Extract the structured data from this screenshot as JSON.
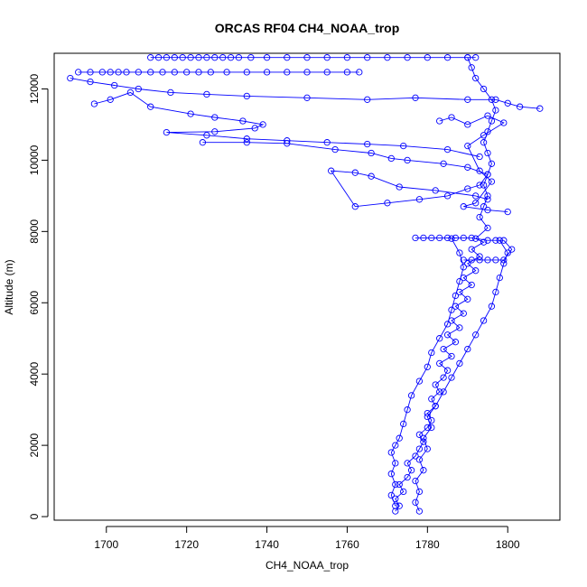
{
  "chart_data": {
    "type": "scatter",
    "title": "ORCAS RF04 CH4_NOAA_trop",
    "xlabel": "CH4_NOAA_trop",
    "ylabel": "Altitude (m)",
    "xlim": [
      1687,
      1813
    ],
    "ylim": [
      -100,
      13000
    ],
    "xticks": [
      1700,
      1720,
      1740,
      1760,
      1780,
      1800
    ],
    "yticks": [
      0,
      2000,
      4000,
      6000,
      8000,
      10000,
      12000
    ],
    "grid": false,
    "legend": "none",
    "marker": "open-circle",
    "line": true,
    "colors": {
      "series": "#0000ff",
      "axes": "#000000"
    },
    "series": [
      {
        "values": [
          [
            1772,
            150
          ],
          [
            1773,
            300
          ],
          [
            1772,
            500
          ],
          [
            1774,
            700
          ],
          [
            1773,
            900
          ],
          [
            1775,
            1100
          ],
          [
            1776,
            1300
          ],
          [
            1775,
            1500
          ],
          [
            1777,
            1700
          ],
          [
            1778,
            1900
          ],
          [
            1779,
            2100
          ],
          [
            1778,
            2300
          ],
          [
            1780,
            2500
          ],
          [
            1781,
            2700
          ],
          [
            1780,
            2900
          ],
          [
            1782,
            3100
          ],
          [
            1781,
            3300
          ],
          [
            1783,
            3500
          ],
          [
            1782,
            3700
          ],
          [
            1784,
            3900
          ],
          [
            1785,
            4100
          ],
          [
            1783,
            4300
          ],
          [
            1786,
            4500
          ],
          [
            1784,
            4700
          ],
          [
            1787,
            4900
          ],
          [
            1785,
            5100
          ],
          [
            1788,
            5300
          ],
          [
            1786,
            5500
          ],
          [
            1789,
            5700
          ],
          [
            1787,
            5900
          ],
          [
            1790,
            6100
          ],
          [
            1788,
            6300
          ],
          [
            1791,
            6500
          ],
          [
            1789,
            6700
          ],
          [
            1792,
            6900
          ],
          [
            1790,
            7100
          ],
          [
            1793,
            7300
          ],
          [
            1791,
            7500
          ],
          [
            1794,
            7700
          ],
          [
            1792,
            7800
          ],
          [
            1795,
            8100
          ],
          [
            1793,
            8400
          ],
          [
            1794,
            8700
          ],
          [
            1795,
            9000
          ],
          [
            1794,
            9300
          ],
          [
            1795,
            9600
          ],
          [
            1796,
            9900
          ],
          [
            1795,
            10200
          ],
          [
            1794,
            10500
          ],
          [
            1795,
            10800
          ],
          [
            1796,
            11100
          ],
          [
            1797,
            11400
          ],
          [
            1796,
            11700
          ],
          [
            1794,
            12000
          ],
          [
            1792,
            12300
          ],
          [
            1791,
            12600
          ],
          [
            1790,
            12880
          ]
        ]
      },
      {
        "values": [
          [
            1772,
            300
          ],
          [
            1771,
            600
          ],
          [
            1772,
            900
          ],
          [
            1771,
            1200
          ],
          [
            1772,
            1500
          ],
          [
            1771,
            1800
          ],
          [
            1772,
            2000
          ],
          [
            1773,
            2200
          ],
          [
            1774,
            2600
          ],
          [
            1775,
            3000
          ],
          [
            1776,
            3400
          ],
          [
            1778,
            3800
          ],
          [
            1780,
            4200
          ],
          [
            1781,
            4600
          ],
          [
            1783,
            5000
          ],
          [
            1785,
            5400
          ],
          [
            1786,
            5800
          ],
          [
            1787,
            6200
          ],
          [
            1788,
            6600
          ],
          [
            1789,
            7000
          ],
          [
            1788,
            7400
          ],
          [
            1786,
            7800
          ]
        ]
      },
      {
        "values": [
          [
            1778,
            150
          ],
          [
            1777,
            400
          ],
          [
            1778,
            700
          ],
          [
            1777,
            1000
          ],
          [
            1779,
            1300
          ],
          [
            1778,
            1600
          ],
          [
            1780,
            1900
          ],
          [
            1779,
            2200
          ],
          [
            1781,
            2500
          ],
          [
            1780,
            2800
          ],
          [
            1782,
            3100
          ],
          [
            1784,
            3500
          ],
          [
            1786,
            3900
          ],
          [
            1788,
            4300
          ],
          [
            1790,
            4700
          ],
          [
            1792,
            5100
          ],
          [
            1794,
            5500
          ],
          [
            1796,
            5900
          ],
          [
            1797,
            6300
          ],
          [
            1798,
            6700
          ],
          [
            1799,
            7100
          ],
          [
            1800,
            7400
          ],
          [
            1798,
            7750
          ]
        ]
      },
      {
        "values": [
          [
            1777,
            7820
          ],
          [
            1779,
            7820
          ],
          [
            1781,
            7820
          ],
          [
            1783,
            7820
          ],
          [
            1785,
            7820
          ],
          [
            1787,
            7820
          ],
          [
            1789,
            7820
          ],
          [
            1791,
            7820
          ],
          [
            1795,
            7750
          ],
          [
            1797,
            7750
          ],
          [
            1799,
            7750
          ],
          [
            1801,
            7500
          ],
          [
            1799,
            7200
          ],
          [
            1797,
            7200
          ],
          [
            1795,
            7200
          ],
          [
            1793,
            7200
          ],
          [
            1791,
            7200
          ],
          [
            1789,
            7200
          ]
        ]
      },
      {
        "values": [
          [
            1711,
            12880
          ],
          [
            1713,
            12880
          ],
          [
            1715,
            12880
          ],
          [
            1717,
            12880
          ],
          [
            1719,
            12880
          ],
          [
            1721,
            12880
          ],
          [
            1723,
            12880
          ],
          [
            1725,
            12880
          ],
          [
            1727,
            12880
          ],
          [
            1729,
            12880
          ],
          [
            1731,
            12880
          ],
          [
            1733,
            12880
          ],
          [
            1736,
            12880
          ],
          [
            1740,
            12880
          ],
          [
            1745,
            12880
          ],
          [
            1750,
            12880
          ],
          [
            1755,
            12880
          ],
          [
            1760,
            12880
          ],
          [
            1765,
            12880
          ],
          [
            1770,
            12880
          ],
          [
            1775,
            12880
          ],
          [
            1780,
            12880
          ],
          [
            1785,
            12880
          ],
          [
            1790,
            12880
          ],
          [
            1792,
            12880
          ]
        ]
      },
      {
        "values": [
          [
            1693,
            12470
          ],
          [
            1696,
            12470
          ],
          [
            1699,
            12470
          ],
          [
            1701,
            12470
          ],
          [
            1703,
            12470
          ],
          [
            1705,
            12470
          ],
          [
            1708,
            12470
          ],
          [
            1711,
            12470
          ],
          [
            1714,
            12470
          ],
          [
            1717,
            12470
          ],
          [
            1720,
            12470
          ],
          [
            1723,
            12470
          ],
          [
            1726,
            12470
          ],
          [
            1730,
            12470
          ],
          [
            1735,
            12470
          ],
          [
            1740,
            12470
          ],
          [
            1745,
            12470
          ],
          [
            1750,
            12470
          ],
          [
            1755,
            12470
          ],
          [
            1760,
            12470
          ],
          [
            1763,
            12470
          ]
        ]
      },
      {
        "values": [
          [
            1691,
            12300
          ],
          [
            1696,
            12200
          ],
          [
            1702,
            12100
          ],
          [
            1708,
            12000
          ],
          [
            1716,
            11900
          ],
          [
            1725,
            11850
          ],
          [
            1735,
            11800
          ],
          [
            1750,
            11750
          ],
          [
            1765,
            11700
          ],
          [
            1777,
            11750
          ],
          [
            1790,
            11700
          ],
          [
            1797,
            11700
          ],
          [
            1800,
            11600
          ],
          [
            1803,
            11500
          ],
          [
            1808,
            11450
          ]
        ]
      },
      {
        "values": [
          [
            1697,
            11580
          ],
          [
            1701,
            11700
          ],
          [
            1706,
            11900
          ],
          [
            1711,
            11500
          ],
          [
            1721,
            11300
          ],
          [
            1727,
            11200
          ],
          [
            1734,
            11100
          ],
          [
            1739,
            11000
          ],
          [
            1737,
            10900
          ],
          [
            1727,
            10800
          ],
          [
            1715,
            10780
          ],
          [
            1725,
            10700
          ],
          [
            1735,
            10600
          ],
          [
            1745,
            10550
          ],
          [
            1755,
            10500
          ],
          [
            1765,
            10450
          ],
          [
            1774,
            10400
          ],
          [
            1785,
            10300
          ],
          [
            1793,
            10100
          ]
        ]
      },
      {
        "values": [
          [
            1724,
            10500
          ],
          [
            1735,
            10500
          ],
          [
            1745,
            10470
          ],
          [
            1757,
            10300
          ],
          [
            1766,
            10200
          ],
          [
            1771,
            10050
          ],
          [
            1775,
            10000
          ],
          [
            1784,
            9900
          ],
          [
            1790,
            9800
          ],
          [
            1795,
            9600
          ],
          [
            1793,
            9300
          ],
          [
            1790,
            9200
          ],
          [
            1785,
            9000
          ],
          [
            1778,
            8900
          ],
          [
            1770,
            8800
          ],
          [
            1762,
            8700
          ],
          [
            1756,
            9700
          ],
          [
            1762,
            9650
          ],
          [
            1766,
            9550
          ],
          [
            1773,
            9250
          ],
          [
            1782,
            9150
          ],
          [
            1792,
            9000
          ],
          [
            1795,
            8900
          ]
        ]
      },
      {
        "values": [
          [
            1783,
            11100
          ],
          [
            1786,
            11200
          ],
          [
            1790,
            11000
          ],
          [
            1795,
            11250
          ],
          [
            1799,
            11050
          ],
          [
            1794,
            10700
          ],
          [
            1790,
            10400
          ],
          [
            1793,
            9700
          ],
          [
            1796,
            9400
          ],
          [
            1792,
            8800
          ],
          [
            1789,
            8700
          ],
          [
            1795,
            8600
          ],
          [
            1800,
            8550
          ]
        ]
      }
    ]
  }
}
